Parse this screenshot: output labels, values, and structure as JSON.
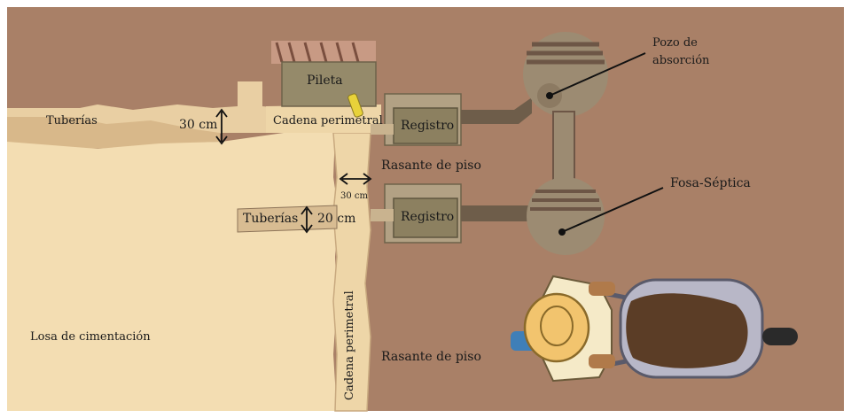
{
  "labels": {
    "pileta": "Pileta",
    "tuberias_top": "Tuberías",
    "dim_30_top": "30 cm",
    "cadena_top": "Cadena perimetral",
    "registro_top": "Registro",
    "rasante_mid": "Rasante de piso",
    "dim_30_vertical": "30 cm",
    "tuberias_mid": "Tuberías",
    "dim_20": "20 cm",
    "registro_bottom": "Registro",
    "pozo": "Pozo de\nabsorción",
    "pozo_line1": "Pozo de",
    "pozo_line2": "absorción",
    "fosa": "Fosa-Séptica",
    "losa": "Losa de cimentación",
    "cadena_vertical": "Cadena perimetral",
    "rasante_bottom": "Rasante de piso"
  },
  "colors": {
    "ground": "#a98067",
    "ground_dark": "#8f6a55",
    "slab": "#f3ddb2",
    "slab_edge": "#e8c998",
    "wall": "#cbb797",
    "registro": "#8c8060",
    "pileta": "#958a6a",
    "pipe": "#6e5d4a",
    "tank": "#9c8b72",
    "tank_dark": "#6d5646",
    "hat": "#f2c46e",
    "shirt": "#f5eac8",
    "sleeve_blue": "#3f7fb8",
    "barrow": "#b8b7c7",
    "dirt": "#5b3d26"
  }
}
